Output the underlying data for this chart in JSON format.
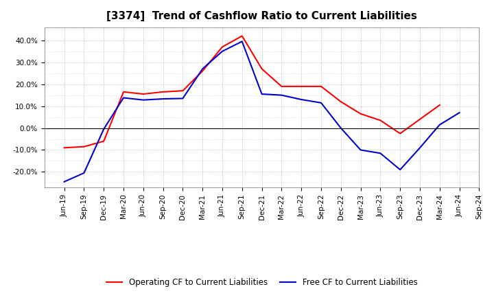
{
  "title": "[3374]  Trend of Cashflow Ratio to Current Liabilities",
  "x_labels": [
    "Jun-19",
    "Sep-19",
    "Dec-19",
    "Mar-20",
    "Jun-20",
    "Sep-20",
    "Dec-20",
    "Mar-21",
    "Jun-21",
    "Sep-21",
    "Dec-21",
    "Mar-22",
    "Jun-22",
    "Sep-22",
    "Dec-22",
    "Mar-23",
    "Jun-23",
    "Sep-23",
    "Dec-23",
    "Mar-24",
    "Jun-24",
    "Sep-24"
  ],
  "operating_cf": [
    -0.09,
    -0.085,
    -0.06,
    0.165,
    0.155,
    0.165,
    0.17,
    0.26,
    0.37,
    0.42,
    0.27,
    0.19,
    0.19,
    0.19,
    0.12,
    0.065,
    0.035,
    -0.025,
    0.04,
    0.105,
    null,
    null
  ],
  "free_cf": [
    -0.245,
    -0.205,
    -0.005,
    0.138,
    0.128,
    0.133,
    0.135,
    0.27,
    0.35,
    0.395,
    0.155,
    0.15,
    0.13,
    0.115,
    0.0,
    -0.1,
    -0.115,
    -0.19,
    -0.09,
    0.015,
    0.07,
    null
  ],
  "operating_color": "#FF0000",
  "free_color": "#0000CC",
  "background_color": "#FFFFFF",
  "grid_color": "#AAAAAA",
  "ylim": [
    -0.27,
    0.46
  ],
  "yticks": [
    -0.2,
    -0.1,
    0.0,
    0.1,
    0.2,
    0.3,
    0.4
  ],
  "legend_operating": "Operating CF to Current Liabilities",
  "legend_free": "Free CF to Current Liabilities",
  "title_fontsize": 11,
  "tick_fontsize": 7.5,
  "legend_fontsize": 8.5
}
